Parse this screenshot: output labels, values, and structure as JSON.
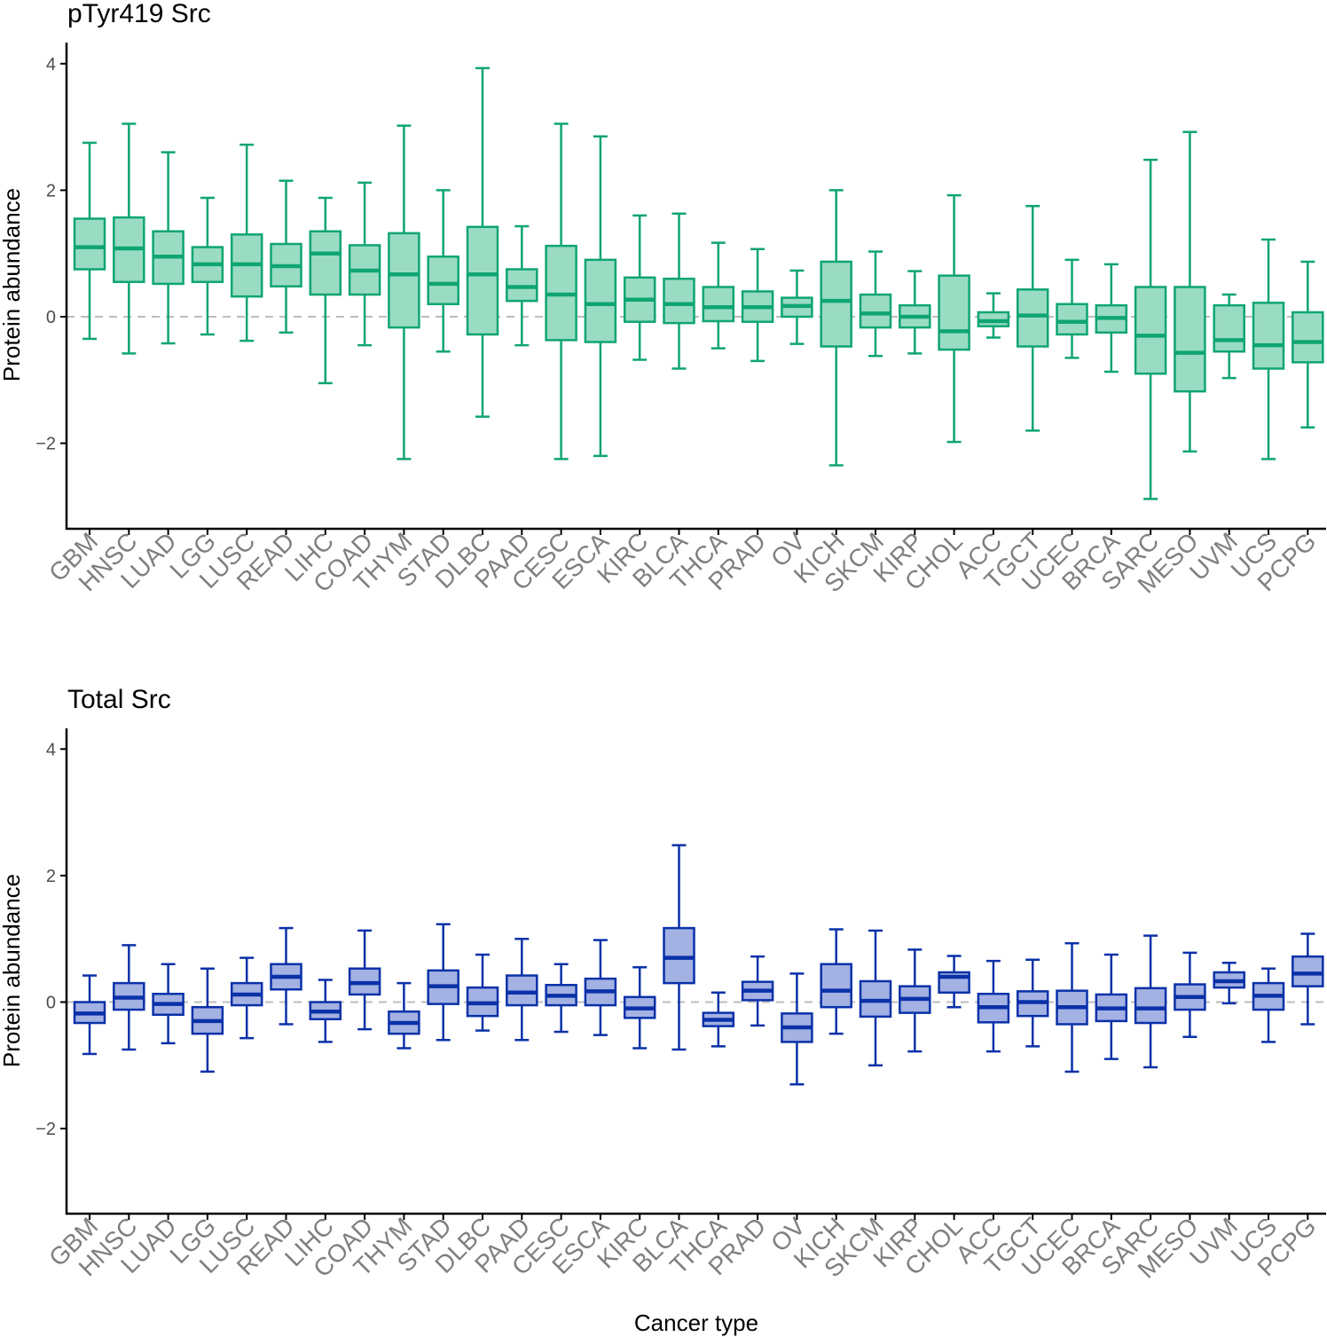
{
  "chart_data": [
    {
      "type": "box",
      "title": "pTyr419 Src",
      "ylabel": "Protein abundance",
      "xlabel": "",
      "ylim": [
        -3.35,
        4.35
      ],
      "yticks": [
        -2,
        0,
        2,
        4
      ],
      "ytick_labels": [
        "−2",
        "0",
        "2",
        "4"
      ],
      "reference_line": 0,
      "colors": {
        "stroke": "#0fa572",
        "fill": "#9adcc3"
      },
      "categories": [
        "GBM",
        "HNSC",
        "LUAD",
        "LGG",
        "LUSC",
        "READ",
        "LIHC",
        "COAD",
        "THYM",
        "STAD",
        "DLBC",
        "PAAD",
        "CESC",
        "ESCA",
        "KIRC",
        "BLCA",
        "THCA",
        "PRAD",
        "OV",
        "KICH",
        "SKCM",
        "KIRP",
        "CHOL",
        "ACC",
        "TGCT",
        "UCEC",
        "BRCA",
        "SARC",
        "MESO",
        "UVM",
        "UCS",
        "PCPG"
      ],
      "boxes": [
        {
          "min": -0.35,
          "q1": 0.75,
          "median": 1.1,
          "q3": 1.55,
          "max": 2.75
        },
        {
          "min": -0.58,
          "q1": 0.55,
          "median": 1.08,
          "q3": 1.57,
          "max": 3.05
        },
        {
          "min": -0.42,
          "q1": 0.52,
          "median": 0.95,
          "q3": 1.35,
          "max": 2.6
        },
        {
          "min": -0.28,
          "q1": 0.55,
          "median": 0.83,
          "q3": 1.1,
          "max": 1.88
        },
        {
          "min": -0.38,
          "q1": 0.32,
          "median": 0.83,
          "q3": 1.3,
          "max": 2.72
        },
        {
          "min": -0.25,
          "q1": 0.48,
          "median": 0.8,
          "q3": 1.15,
          "max": 2.15
        },
        {
          "min": -1.05,
          "q1": 0.35,
          "median": 1.0,
          "q3": 1.35,
          "max": 1.88
        },
        {
          "min": -0.45,
          "q1": 0.35,
          "median": 0.73,
          "q3": 1.13,
          "max": 2.12
        },
        {
          "min": -2.25,
          "q1": -0.17,
          "median": 0.67,
          "q3": 1.32,
          "max": 3.02
        },
        {
          "min": -0.55,
          "q1": 0.2,
          "median": 0.52,
          "q3": 0.95,
          "max": 2.0
        },
        {
          "min": -1.58,
          "q1": -0.28,
          "median": 0.67,
          "q3": 1.42,
          "max": 3.93
        },
        {
          "min": -0.45,
          "q1": 0.25,
          "median": 0.47,
          "q3": 0.75,
          "max": 1.43
        },
        {
          "min": -2.25,
          "q1": -0.37,
          "median": 0.35,
          "q3": 1.12,
          "max": 3.05
        },
        {
          "min": -2.2,
          "q1": -0.4,
          "median": 0.2,
          "q3": 0.9,
          "max": 2.85
        },
        {
          "min": -0.68,
          "q1": -0.08,
          "median": 0.27,
          "q3": 0.62,
          "max": 1.6
        },
        {
          "min": -0.82,
          "q1": -0.1,
          "median": 0.2,
          "q3": 0.6,
          "max": 1.63
        },
        {
          "min": -0.5,
          "q1": -0.07,
          "median": 0.15,
          "q3": 0.47,
          "max": 1.17
        },
        {
          "min": -0.7,
          "q1": -0.08,
          "median": 0.15,
          "q3": 0.4,
          "max": 1.07
        },
        {
          "min": -0.43,
          "q1": 0.0,
          "median": 0.17,
          "q3": 0.3,
          "max": 0.73
        },
        {
          "min": -2.35,
          "q1": -0.47,
          "median": 0.25,
          "q3": 0.87,
          "max": 2.0
        },
        {
          "min": -0.62,
          "q1": -0.17,
          "median": 0.05,
          "q3": 0.35,
          "max": 1.03
        },
        {
          "min": -0.58,
          "q1": -0.17,
          "median": 0.0,
          "q3": 0.18,
          "max": 0.72
        },
        {
          "min": -1.98,
          "q1": -0.52,
          "median": -0.23,
          "q3": 0.65,
          "max": 1.92
        },
        {
          "min": -0.33,
          "q1": -0.15,
          "median": -0.07,
          "q3": 0.07,
          "max": 0.37
        },
        {
          "min": -1.8,
          "q1": -0.47,
          "median": 0.02,
          "q3": 0.43,
          "max": 1.75
        },
        {
          "min": -0.65,
          "q1": -0.28,
          "median": -0.08,
          "q3": 0.2,
          "max": 0.9
        },
        {
          "min": -0.87,
          "q1": -0.25,
          "median": -0.02,
          "q3": 0.18,
          "max": 0.83
        },
        {
          "min": -2.88,
          "q1": -0.9,
          "median": -0.3,
          "q3": 0.47,
          "max": 2.48
        },
        {
          "min": -2.13,
          "q1": -1.18,
          "median": -0.57,
          "q3": 0.47,
          "max": 2.92
        },
        {
          "min": -0.97,
          "q1": -0.55,
          "median": -0.37,
          "q3": 0.18,
          "max": 0.35
        },
        {
          "min": -2.25,
          "q1": -0.82,
          "median": -0.45,
          "q3": 0.22,
          "max": 1.22
        },
        {
          "min": -1.75,
          "q1": -0.72,
          "median": -0.4,
          "q3": 0.07,
          "max": 0.87
        }
      ]
    },
    {
      "type": "box",
      "title": "Total Src",
      "ylabel": "Protein abundance",
      "xlabel": "Cancer type",
      "ylim": [
        -3.35,
        4.35
      ],
      "yticks": [
        -2,
        0,
        2,
        4
      ],
      "ytick_labels": [
        "−2",
        "0",
        "2",
        "4"
      ],
      "reference_line": 0,
      "colors": {
        "stroke": "#0a31a8",
        "fill": "#a3b1e3"
      },
      "categories": [
        "GBM",
        "HNSC",
        "LUAD",
        "LGG",
        "LUSC",
        "READ",
        "LIHC",
        "COAD",
        "THYM",
        "STAD",
        "DLBC",
        "PAAD",
        "CESC",
        "ESCA",
        "KIRC",
        "BLCA",
        "THCA",
        "PRAD",
        "OV",
        "KICH",
        "SKCM",
        "KIRP",
        "CHOL",
        "ACC",
        "TGCT",
        "UCEC",
        "BRCA",
        "SARC",
        "MESO",
        "UVM",
        "UCS",
        "PCPG"
      ],
      "boxes": [
        {
          "min": -0.82,
          "q1": -0.33,
          "median": -0.18,
          "q3": 0.0,
          "max": 0.42
        },
        {
          "min": -0.75,
          "q1": -0.12,
          "median": 0.07,
          "q3": 0.3,
          "max": 0.9
        },
        {
          "min": -0.65,
          "q1": -0.2,
          "median": -0.03,
          "q3": 0.13,
          "max": 0.6
        },
        {
          "min": -1.1,
          "q1": -0.5,
          "median": -0.3,
          "q3": -0.08,
          "max": 0.53
        },
        {
          "min": -0.57,
          "q1": -0.05,
          "median": 0.12,
          "q3": 0.3,
          "max": 0.7
        },
        {
          "min": -0.35,
          "q1": 0.2,
          "median": 0.4,
          "q3": 0.6,
          "max": 1.17
        },
        {
          "min": -0.63,
          "q1": -0.27,
          "median": -0.15,
          "q3": 0.0,
          "max": 0.35
        },
        {
          "min": -0.43,
          "q1": 0.12,
          "median": 0.3,
          "q3": 0.53,
          "max": 1.13
        },
        {
          "min": -0.73,
          "q1": -0.5,
          "median": -0.33,
          "q3": -0.15,
          "max": 0.3
        },
        {
          "min": -0.6,
          "q1": -0.03,
          "median": 0.25,
          "q3": 0.5,
          "max": 1.23
        },
        {
          "min": -0.45,
          "q1": -0.22,
          "median": -0.02,
          "q3": 0.23,
          "max": 0.75
        },
        {
          "min": -0.6,
          "q1": -0.05,
          "median": 0.15,
          "q3": 0.42,
          "max": 1.0
        },
        {
          "min": -0.47,
          "q1": -0.05,
          "median": 0.1,
          "q3": 0.27,
          "max": 0.6
        },
        {
          "min": -0.52,
          "q1": -0.05,
          "median": 0.17,
          "q3": 0.37,
          "max": 0.98
        },
        {
          "min": -0.73,
          "q1": -0.25,
          "median": -0.1,
          "q3": 0.08,
          "max": 0.55
        },
        {
          "min": -0.75,
          "q1": 0.3,
          "median": 0.7,
          "q3": 1.17,
          "max": 2.48
        },
        {
          "min": -0.7,
          "q1": -0.38,
          "median": -0.28,
          "q3": -0.17,
          "max": 0.15
        },
        {
          "min": -0.37,
          "q1": 0.03,
          "median": 0.18,
          "q3": 0.32,
          "max": 0.72
        },
        {
          "min": -1.3,
          "q1": -0.63,
          "median": -0.4,
          "q3": -0.18,
          "max": 0.45
        },
        {
          "min": -0.5,
          "q1": -0.08,
          "median": 0.18,
          "q3": 0.6,
          "max": 1.15
        },
        {
          "min": -1.0,
          "q1": -0.23,
          "median": 0.02,
          "q3": 0.33,
          "max": 1.13
        },
        {
          "min": -0.78,
          "q1": -0.17,
          "median": 0.05,
          "q3": 0.25,
          "max": 0.83
        },
        {
          "min": -0.08,
          "q1": 0.15,
          "median": 0.4,
          "q3": 0.47,
          "max": 0.73
        },
        {
          "min": -0.78,
          "q1": -0.32,
          "median": -0.08,
          "q3": 0.13,
          "max": 0.65
        },
        {
          "min": -0.7,
          "q1": -0.22,
          "median": 0.0,
          "q3": 0.17,
          "max": 0.67
        },
        {
          "min": -1.1,
          "q1": -0.35,
          "median": -0.08,
          "q3": 0.18,
          "max": 0.93
        },
        {
          "min": -0.9,
          "q1": -0.3,
          "median": -0.1,
          "q3": 0.12,
          "max": 0.75
        },
        {
          "min": -1.03,
          "q1": -0.33,
          "median": -0.1,
          "q3": 0.22,
          "max": 1.05
        },
        {
          "min": -0.55,
          "q1": -0.12,
          "median": 0.08,
          "q3": 0.28,
          "max": 0.78
        },
        {
          "min": -0.02,
          "q1": 0.23,
          "median": 0.33,
          "q3": 0.47,
          "max": 0.62
        },
        {
          "min": -0.63,
          "q1": -0.12,
          "median": 0.1,
          "q3": 0.3,
          "max": 0.53
        },
        {
          "min": -0.35,
          "q1": 0.25,
          "median": 0.45,
          "q3": 0.72,
          "max": 1.08
        }
      ]
    }
  ]
}
